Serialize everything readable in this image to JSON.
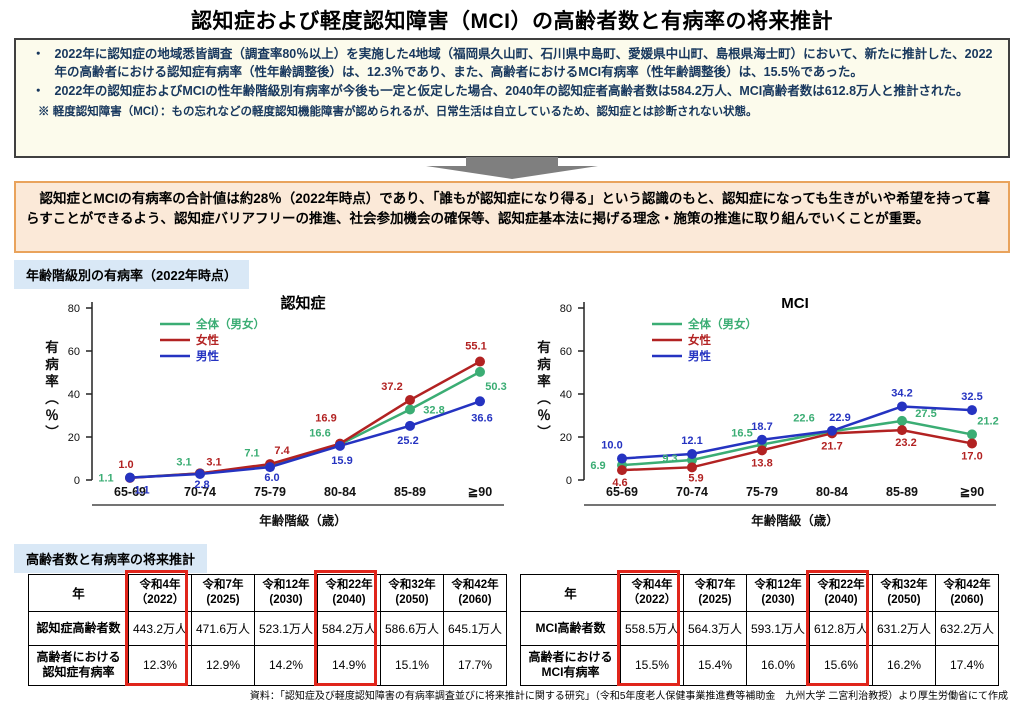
{
  "title": "認知症および軽度認知障害（MCI）の高齢者数と有病率の将来推計",
  "summary_box": {
    "bullets": [
      "2022年に認知症の地域悉皆調査（調査率80％以上）を実施した4地域（福岡県久山町、石川県中島町、愛媛県中山町、島根県海士町）において、新たに推計した、2022年の高齢者における認知症有病率（性年齢調整後）は、12.3％であり、また、高齢者におけるMCI有病率（性年齢調整後）は、15.5％であった。",
      "2022年の認知症およびMCIの性年齢階級別有病率が今後も一定と仮定した場合、2040年の認知症者高齢者数は584.2万人、MCI高齢者数は612.8万人と推計された。"
    ],
    "note": "※ 軽度認知障害（MCI）：もの忘れなどの軽度認知機能障害が認められるが、日常生活は自立しているため、認知症とは診断されない状態。"
  },
  "highlight_box": {
    "text": "認知症とMCIの有病率の合計値は約28％（2022年時点）であり、「誰もが認知症になり得る」という認識のもと、認知症になっても生きがいや希望を持って暮らすことができるよう、認知症バリアフリーの推進、社会参加機会の確保等、認知症基本法に掲げる理念・施策の推進に取り組んでいくことが重要。",
    "border_color": "#E9A35C",
    "background_color": "#FBE9D8"
  },
  "sections": {
    "prevalence": "年齢階級別の有病率（2022年時点）",
    "projection": "高齢者数と有病率の将来推計"
  },
  "chart_data": [
    {
      "type": "line",
      "title": "認知症",
      "categories": [
        "65-69",
        "70-74",
        "75-79",
        "80-84",
        "85-89",
        "≧90"
      ],
      "xlabel": "年齢階級（歳）",
      "ylabel": "有病率（％）",
      "ylim": [
        0,
        80
      ],
      "yticks": [
        0,
        20,
        40,
        60,
        80
      ],
      "grid": false,
      "legend_position": "top-left",
      "series": [
        {
          "name": "全体（男女）",
          "color": "#3BAD74",
          "values": [
            1.1,
            3.1,
            7.1,
            16.6,
            32.8,
            50.3
          ],
          "label_offsets": [
            [
              -24,
              4
            ],
            [
              -16,
              -8
            ],
            [
              -18,
              -8
            ],
            [
              -20,
              -8
            ],
            [
              24,
              4
            ],
            [
              16,
              18
            ]
          ]
        },
        {
          "name": "女性",
          "color": "#B22222",
          "values": [
            1.0,
            3.1,
            7.4,
            16.9,
            37.2,
            55.1
          ],
          "label_offsets": [
            [
              -4,
              -10
            ],
            [
              14,
              -8
            ],
            [
              12,
              -10
            ],
            [
              -14,
              -22
            ],
            [
              -18,
              -10
            ],
            [
              -4,
              -12
            ]
          ]
        },
        {
          "name": "男性",
          "color": "#2533C1",
          "values": [
            1.1,
            2.8,
            6.0,
            15.9,
            25.2,
            36.6
          ],
          "label_offsets": [
            [
              12,
              16
            ],
            [
              2,
              14
            ],
            [
              2,
              14
            ],
            [
              2,
              18
            ],
            [
              -2,
              18
            ],
            [
              2,
              20
            ]
          ]
        }
      ]
    },
    {
      "type": "line",
      "title": "MCI",
      "categories": [
        "65-69",
        "70-74",
        "75-79",
        "80-84",
        "85-89",
        "≧90"
      ],
      "xlabel": "年齢階級（歳）",
      "ylabel": "有病率（％）",
      "ylim": [
        0,
        80
      ],
      "yticks": [
        0,
        20,
        40,
        60,
        80
      ],
      "grid": false,
      "legend_position": "top-left",
      "series": [
        {
          "name": "全体（男女）",
          "color": "#3BAD74",
          "values": [
            6.9,
            9.3,
            16.5,
            22.6,
            27.5,
            21.2
          ],
          "label_offsets": [
            [
              -24,
              4
            ],
            [
              -22,
              2
            ],
            [
              -20,
              -8
            ],
            [
              -28,
              -10
            ],
            [
              24,
              -4
            ],
            [
              16,
              -10
            ]
          ]
        },
        {
          "name": "女性",
          "color": "#B22222",
          "values": [
            4.6,
            5.9,
            13.8,
            21.7,
            23.2,
            17.0
          ],
          "label_offsets": [
            [
              -2,
              16
            ],
            [
              4,
              14
            ],
            [
              0,
              16
            ],
            [
              0,
              16
            ],
            [
              4,
              16
            ],
            [
              0,
              16
            ]
          ]
        },
        {
          "name": "男性",
          "color": "#2533C1",
          "values": [
            10.0,
            12.1,
            18.7,
            22.9,
            34.2,
            32.5
          ],
          "label_offsets": [
            [
              -10,
              -10
            ],
            [
              0,
              -10
            ],
            [
              0,
              -10
            ],
            [
              8,
              -10
            ],
            [
              0,
              -10
            ],
            [
              0,
              -10
            ]
          ]
        }
      ]
    }
  ],
  "tables": [
    {
      "corner": "年",
      "columns": [
        {
          "era": "令和4年",
          "year": "（2022）"
        },
        {
          "era": "令和7年",
          "year": "(2025)"
        },
        {
          "era": "令和12年",
          "year": "(2030)"
        },
        {
          "era": "令和22年",
          "year": "(2040)"
        },
        {
          "era": "令和32年",
          "year": "(2050)"
        },
        {
          "era": "令和42年",
          "year": "(2060)"
        }
      ],
      "rows": [
        {
          "label": "認知症高齢者数",
          "values": [
            "443.2万人",
            "471.6万人",
            "523.1万人",
            "584.2万人",
            "586.6万人",
            "645.1万人"
          ]
        },
        {
          "label": "高齢者における\n認知症有病率",
          "values": [
            "12.3%",
            "12.9%",
            "14.2%",
            "14.9%",
            "15.1%",
            "17.7%"
          ]
        }
      ],
      "highlight_columns": [
        0,
        3
      ],
      "highlight_color": "#E0251B"
    },
    {
      "corner": "年",
      "columns": [
        {
          "era": "令和4年",
          "year": "（2022）"
        },
        {
          "era": "令和7年",
          "year": "(2025)"
        },
        {
          "era": "令和12年",
          "year": "(2030)"
        },
        {
          "era": "令和22年",
          "year": "(2040)"
        },
        {
          "era": "令和32年",
          "year": "(2050)"
        },
        {
          "era": "令和42年",
          "year": "(2060)"
        }
      ],
      "rows": [
        {
          "label": "MCI高齢者数",
          "values": [
            "558.5万人",
            "564.3万人",
            "593.1万人",
            "612.8万人",
            "631.2万人",
            "632.2万人"
          ]
        },
        {
          "label": "高齢者における\nMCI有病率",
          "values": [
            "15.5%",
            "15.4%",
            "16.0%",
            "15.6%",
            "16.2%",
            "17.4%"
          ]
        }
      ],
      "highlight_columns": [
        0,
        3
      ],
      "highlight_color": "#E0251B"
    }
  ],
  "source": "資料：「認知症及び軽度認知障害の有病率調査並びに将来推計に関する研究」（令和5年度老人保健事業推進費等補助金　九州大学 二宮利治教授）より厚生労働省にて作成"
}
